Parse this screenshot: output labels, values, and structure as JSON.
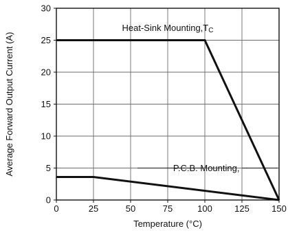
{
  "chart_data": {
    "type": "line",
    "xlabel": "Temperature (°C)",
    "ylabel": "Average Forward Output Current (A)",
    "xlim": [
      0,
      150
    ],
    "ylim": [
      0,
      30
    ],
    "xticks": [
      0,
      25,
      50,
      75,
      100,
      125,
      150
    ],
    "yticks": [
      0,
      5,
      10,
      15,
      20,
      25,
      30
    ],
    "xtick_labels": [
      "0",
      "25",
      "50",
      "75",
      "100",
      "125",
      "150"
    ],
    "ytick_labels": [
      "0",
      "5",
      "10",
      "15",
      "20",
      "25",
      "30"
    ],
    "grid": true,
    "series": [
      {
        "x": [
          0,
          100,
          150
        ],
        "y": [
          25,
          25,
          0
        ]
      },
      {
        "x": [
          0,
          25,
          150
        ],
        "y": [
          3.6,
          3.6,
          0
        ]
      }
    ],
    "annotations": [
      {
        "text": "Heat-Sink Mounting,T",
        "sub": "C",
        "x": 75,
        "y": 27
      },
      {
        "text": "P.C.B. Mounting,",
        "x": 101,
        "y": 5
      }
    ],
    "colors": {
      "line": "#111111",
      "grid": "#6b6b6b",
      "background": "#ffffff"
    }
  }
}
